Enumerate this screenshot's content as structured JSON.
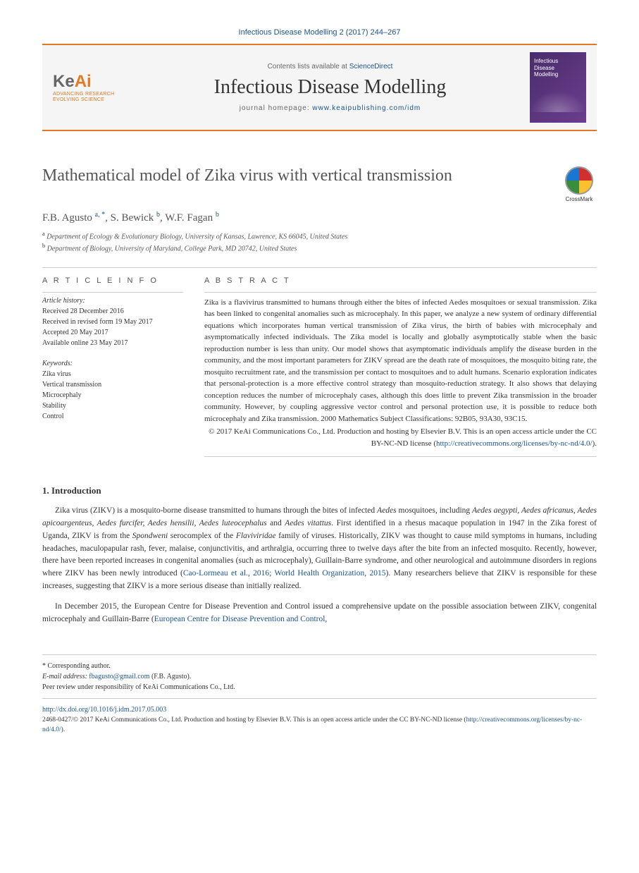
{
  "citation": "Infectious Disease Modelling 2 (2017) 244–267",
  "header": {
    "logo_main": "KeAi",
    "logo_sub1": "ADVANCING RESEARCH",
    "logo_sub2": "EVOLVING SCIENCE",
    "contents_prefix": "Contents lists available at ",
    "contents_link": "ScienceDirect",
    "journal_name": "Infectious Disease Modelling",
    "homepage_prefix": "journal homepage: ",
    "homepage_url": "www.keaipublishing.com/idm",
    "cover_label": "Infectious\nDisease\nModelling"
  },
  "crossmark_label": "CrossMark",
  "title": "Mathematical model of Zika virus with vertical transmission",
  "authors_html": "F.B. Agusto <sup>a, *</sup>, S. Bewick <sup>b</sup>, W.F. Fagan <sup>b</sup>",
  "affiliations": [
    {
      "sup": "a",
      "text": "Department of Ecology & Evolutionary Biology, University of Kansas, Lawrence, KS 66045, United States"
    },
    {
      "sup": "b",
      "text": "Department of Biology, University of Maryland, College Park, MD 20742, United States"
    }
  ],
  "article_info": {
    "heading": "A R T I C L E  I N F O",
    "history_label": "Article history:",
    "history": "Received 28 December 2016\nReceived in revised form 19 May 2017\nAccepted 20 May 2017\nAvailable online 23 May 2017",
    "keywords_label": "Keywords:",
    "keywords": "Zika virus\nVertical transmission\nMicrocephaly\nStability\nControl"
  },
  "abstract": {
    "heading": "A B S T R A C T",
    "text": "Zika is a flavivirus transmitted to humans through either the bites of infected Aedes mosquitoes or sexual transmission. Zika has been linked to congenital anomalies such as microcephaly. In this paper, we analyze a new system of ordinary differential equations which incorporates human vertical transmission of Zika virus, the birth of babies with microcephaly and asymptomatically infected individuals. The Zika model is locally and globally asymptotically stable when the basic reproduction number is less than unity. Our model shows that asymptomatic individuals amplify the disease burden in the community, and the most important parameters for ZIKV spread are the death rate of mosquitoes, the mosquito biting rate, the mosquito recruitment rate, and the transmission per contact to mosquitoes and to adult humans. Scenario exploration indicates that personal-protection is a more effective control strategy than mosquito-reduction strategy. It also shows that delaying conception reduces the number of microcephaly cases, although this does little to prevent Zika transmission in the broader community. However, by coupling aggressive vector control and personal protection use, it is possible to reduce both microcephaly and Zika transmission. 2000 Mathematics Subject Classifications: 92B05, 93A30, 93C15.",
    "copyright": "© 2017 KeAi Communications Co., Ltd. Production and hosting by Elsevier B.V. This is an open access article under the CC BY-NC-ND license (",
    "license_url": "http://creativecommons.org/licenses/by-nc-nd/4.0/",
    "license_close": ")."
  },
  "section1": {
    "heading": "1. Introduction",
    "para1_pre": "Zika virus (ZIKV) is a mosquito-borne disease transmitted to humans through the bites of infected ",
    "para1_em1": "Aedes",
    "para1_mid1": " mosquitoes, including ",
    "para1_em2": "Aedes aegypti, Aedes africanus, Aedes apicoargenteus, Aedes furcifer, Aedes hensilii, Aedes luteocephalus",
    "para1_mid2": " and ",
    "para1_em3": "Aedes vitattus",
    "para1_mid3": ". First identified in a rhesus macaque population in 1947 in the Zika forest of Uganda, ZIKV is from the ",
    "para1_em4": "Spondweni",
    "para1_mid4": " serocomplex of the ",
    "para1_em5": "Flaviviridae",
    "para1_mid5": " family of viruses. Historically, ZIKV was thought to cause mild symptoms in humans, including headaches, maculopapular rash, fever, malaise, conjunctivitis, and arthralgia, occurring three to twelve days after the bite from an infected mosquito. Recently, however, there have been reported increases in congenital anomalies (such as microcephaly), Guillain-Barre syndrome, and other neurological and autoimmune disorders in regions where ZIKV has been newly introduced (",
    "para1_link": "Cao-Lormeau et al., 2016; World Health Organization, 2015",
    "para1_post": "). Many researchers believe that ZIKV is responsible for these increases, suggesting that ZIKV is a more serious disease than initially realized.",
    "para2_pre": "In December 2015, the European Centre for Disease Prevention and Control issued a comprehensive update on the possible association between ZIKV, congenital microcephaly and Guillain-Barre (",
    "para2_link": "European Centre for Disease Prevention and Control,"
  },
  "footer": {
    "corresponding": "* Corresponding author.",
    "email_label": "E-mail address: ",
    "email": "fbagusto@gmail.com",
    "email_person": " (F.B. Agusto).",
    "peer": "Peer review under responsibility of KeAi Communications Co., Ltd.",
    "doi": "http://dx.doi.org/10.1016/j.idm.2017.05.003",
    "issn_line": "2468-0427/© 2017 KeAi Communications Co., Ltd. Production and hosting by Elsevier B.V. This is an open access article under the CC BY-NC-ND license (",
    "license_url": "http://creativecommons.org/licenses/by-nc-nd/4.0/",
    "license_close": ")."
  },
  "colors": {
    "accent": "#e87722",
    "link": "#1a5490",
    "text": "#333333"
  }
}
